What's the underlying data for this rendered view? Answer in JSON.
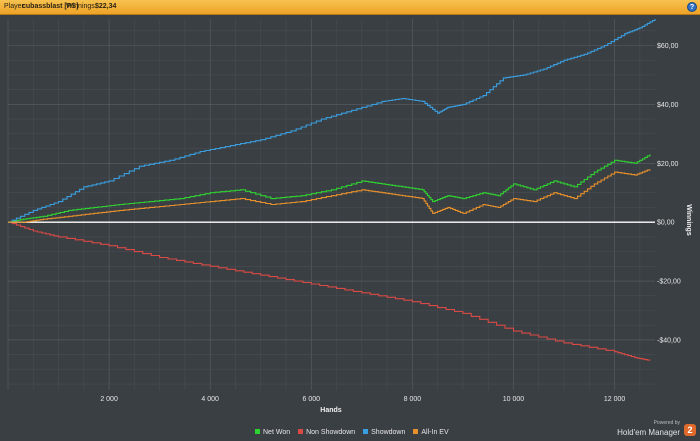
{
  "header": {
    "player_label": "Player:",
    "player_value": "cubassblast [PS]",
    "winnings_label": "Winnings:",
    "winnings_value": "$22,34",
    "help_glyph": "?"
  },
  "brand": {
    "powered_by": "Powered by",
    "product": "Hold'em Manager",
    "version": "2"
  },
  "chart_data": {
    "type": "line",
    "xlabel": "Hands",
    "ylabel": "Winnings",
    "xlim": [
      0,
      12800
    ],
    "ylim": [
      -57,
      69
    ],
    "x_ticks": [
      2000,
      4000,
      6000,
      8000,
      10000,
      12000
    ],
    "x_tick_labels": [
      "2 000",
      "4 000",
      "6 000",
      "8 000",
      "10 000",
      "12 000"
    ],
    "y_ticks": [
      60,
      40,
      20,
      0,
      -20,
      -40
    ],
    "y_tick_labels": [
      "$60,00",
      "$40,00",
      "$20,00",
      "$0,00",
      "-$20,00",
      "-$40,00"
    ],
    "grid": true,
    "legend_position": "bottom",
    "zero_line_color": "#ffffff",
    "series": [
      {
        "name": "Net Won",
        "color": "#2fd32f",
        "x": [
          0,
          300,
          700,
          1200,
          1700,
          2200,
          2800,
          3400,
          4000,
          4600,
          5200,
          5800,
          6400,
          7000,
          7400,
          7800,
          8200,
          8400,
          8700,
          9000,
          9400,
          9700,
          10000,
          10400,
          10800,
          11200,
          11600,
          12000,
          12400,
          12700
        ],
        "values": [
          0,
          1,
          2,
          4,
          5,
          6,
          7,
          8,
          10,
          11,
          8,
          9,
          11,
          14,
          13,
          12,
          11,
          7,
          9,
          8,
          10,
          9,
          13,
          11,
          14,
          12,
          17,
          21,
          20,
          23
        ]
      },
      {
        "name": "Non Showdown",
        "color": "#d94a45",
        "x": [
          0,
          500,
          1000,
          2000,
          3000,
          4000,
          5000,
          6000,
          7000,
          8000,
          9000,
          10000,
          11000,
          12000,
          12400,
          12700
        ],
        "values": [
          0,
          -3,
          -5,
          -8,
          -12,
          -15,
          -18,
          -21,
          -24,
          -27,
          -31,
          -37,
          -41,
          -44,
          -46,
          -47
        ]
      },
      {
        "name": "Showdown",
        "color": "#3a9fe0",
        "x": [
          0,
          500,
          1000,
          1500,
          2000,
          2600,
          3200,
          3800,
          4400,
          5000,
          5600,
          6200,
          6800,
          7400,
          7800,
          8200,
          8500,
          8700,
          9000,
          9400,
          9800,
          10200,
          10600,
          11000,
          11400,
          11800,
          12200,
          12500,
          12800
        ],
        "values": [
          0,
          4,
          7,
          12,
          14,
          19,
          21,
          24,
          26,
          28,
          31,
          35,
          38,
          41,
          42,
          41,
          37,
          39,
          40,
          43,
          49,
          50,
          52,
          55,
          57,
          60,
          64,
          66,
          69
        ]
      },
      {
        "name": "All-In EV",
        "color": "#e8902a",
        "x": [
          0,
          300,
          700,
          1200,
          1700,
          2200,
          2800,
          3400,
          4000,
          4600,
          5200,
          5800,
          6400,
          7000,
          7400,
          7800,
          8200,
          8400,
          8700,
          9000,
          9400,
          9700,
          10000,
          10400,
          10800,
          11200,
          11600,
          12000,
          12400,
          12700
        ],
        "values": [
          0,
          0,
          1,
          2,
          3,
          4,
          5,
          6,
          7,
          8,
          6,
          7,
          9,
          11,
          10,
          9,
          8,
          3,
          5,
          3,
          6,
          5,
          8,
          7,
          10,
          8,
          13,
          17,
          16,
          18
        ]
      }
    ]
  }
}
